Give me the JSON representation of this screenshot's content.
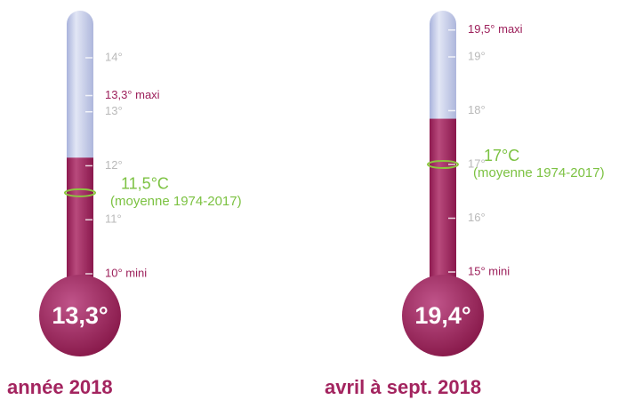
{
  "chart_data": [
    {
      "type": "thermometer",
      "title": "année 2018",
      "reading": {
        "value": 13.3,
        "label": "13,3°"
      },
      "level": 12.15,
      "min": {
        "value": 10,
        "label": "10° mini"
      },
      "max": {
        "value": 13.3,
        "label": "13,3° maxi"
      },
      "average": {
        "value": 11.5,
        "label": "11,5°C",
        "note": "(moyenne 1974-2017)"
      },
      "ylim": [
        10,
        14
      ],
      "yticks": [
        {
          "value": 11,
          "label": "11°"
        },
        {
          "value": 12,
          "label": "12°"
        },
        {
          "value": 13,
          "label": "13°"
        },
        {
          "value": 14,
          "label": "14°"
        }
      ]
    },
    {
      "type": "thermometer",
      "title": "avril à sept. 2018",
      "reading": {
        "value": 19.4,
        "label": "19,4°"
      },
      "level": 17.85,
      "min": {
        "value": 15,
        "label": "15° mini"
      },
      "max": {
        "value": 19.5,
        "label": "19,5° maxi"
      },
      "average": {
        "value": 17,
        "label": "17°C",
        "note": "(moyenne 1974-2017)"
      },
      "ylim": [
        15,
        19
      ],
      "yticks": [
        {
          "value": 16,
          "label": "16°"
        },
        {
          "value": 17,
          "label": "17°"
        },
        {
          "value": 18,
          "label": "18°"
        },
        {
          "value": 19,
          "label": "19°"
        }
      ]
    }
  ]
}
